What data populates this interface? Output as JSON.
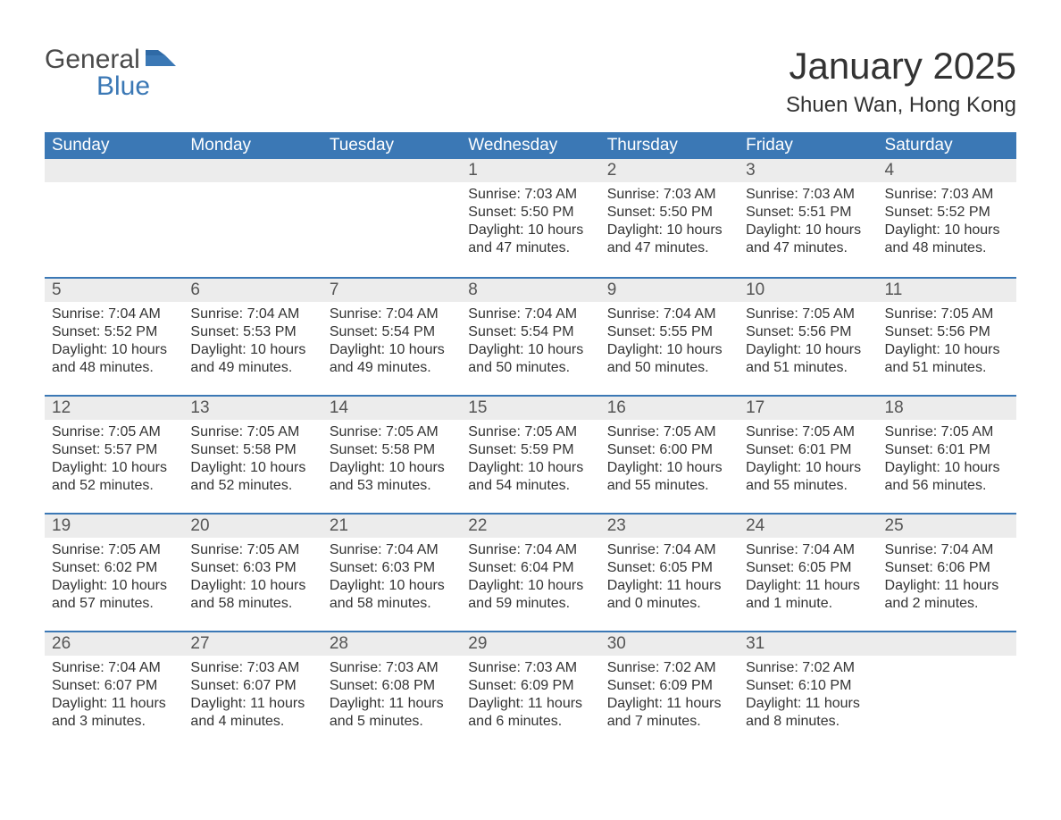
{
  "logo": {
    "text1": "General",
    "text2": "Blue",
    "flag_color": "#3b78b5"
  },
  "title": "January 2025",
  "location": "Shuen Wan, Hong Kong",
  "colors": {
    "header_bg": "#3b78b5",
    "header_text": "#ffffff",
    "daynum_bg": "#ececec",
    "row_border": "#3b78b5",
    "body_bg": "#ffffff",
    "text": "#333333"
  },
  "typography": {
    "title_fontsize": 42,
    "location_fontsize": 24,
    "header_fontsize": 19,
    "daynum_fontsize": 19,
    "body_fontsize": 16
  },
  "weekdays": [
    "Sunday",
    "Monday",
    "Tuesday",
    "Wednesday",
    "Thursday",
    "Friday",
    "Saturday"
  ],
  "weeks": [
    [
      null,
      null,
      null,
      {
        "n": "1",
        "sr": "Sunrise: 7:03 AM",
        "ss": "Sunset: 5:50 PM",
        "dl": "Daylight: 10 hours and 47 minutes."
      },
      {
        "n": "2",
        "sr": "Sunrise: 7:03 AM",
        "ss": "Sunset: 5:50 PM",
        "dl": "Daylight: 10 hours and 47 minutes."
      },
      {
        "n": "3",
        "sr": "Sunrise: 7:03 AM",
        "ss": "Sunset: 5:51 PM",
        "dl": "Daylight: 10 hours and 47 minutes."
      },
      {
        "n": "4",
        "sr": "Sunrise: 7:03 AM",
        "ss": "Sunset: 5:52 PM",
        "dl": "Daylight: 10 hours and 48 minutes."
      }
    ],
    [
      {
        "n": "5",
        "sr": "Sunrise: 7:04 AM",
        "ss": "Sunset: 5:52 PM",
        "dl": "Daylight: 10 hours and 48 minutes."
      },
      {
        "n": "6",
        "sr": "Sunrise: 7:04 AM",
        "ss": "Sunset: 5:53 PM",
        "dl": "Daylight: 10 hours and 49 minutes."
      },
      {
        "n": "7",
        "sr": "Sunrise: 7:04 AM",
        "ss": "Sunset: 5:54 PM",
        "dl": "Daylight: 10 hours and 49 minutes."
      },
      {
        "n": "8",
        "sr": "Sunrise: 7:04 AM",
        "ss": "Sunset: 5:54 PM",
        "dl": "Daylight: 10 hours and 50 minutes."
      },
      {
        "n": "9",
        "sr": "Sunrise: 7:04 AM",
        "ss": "Sunset: 5:55 PM",
        "dl": "Daylight: 10 hours and 50 minutes."
      },
      {
        "n": "10",
        "sr": "Sunrise: 7:05 AM",
        "ss": "Sunset: 5:56 PM",
        "dl": "Daylight: 10 hours and 51 minutes."
      },
      {
        "n": "11",
        "sr": "Sunrise: 7:05 AM",
        "ss": "Sunset: 5:56 PM",
        "dl": "Daylight: 10 hours and 51 minutes."
      }
    ],
    [
      {
        "n": "12",
        "sr": "Sunrise: 7:05 AM",
        "ss": "Sunset: 5:57 PM",
        "dl": "Daylight: 10 hours and 52 minutes."
      },
      {
        "n": "13",
        "sr": "Sunrise: 7:05 AM",
        "ss": "Sunset: 5:58 PM",
        "dl": "Daylight: 10 hours and 52 minutes."
      },
      {
        "n": "14",
        "sr": "Sunrise: 7:05 AM",
        "ss": "Sunset: 5:58 PM",
        "dl": "Daylight: 10 hours and 53 minutes."
      },
      {
        "n": "15",
        "sr": "Sunrise: 7:05 AM",
        "ss": "Sunset: 5:59 PM",
        "dl": "Daylight: 10 hours and 54 minutes."
      },
      {
        "n": "16",
        "sr": "Sunrise: 7:05 AM",
        "ss": "Sunset: 6:00 PM",
        "dl": "Daylight: 10 hours and 55 minutes."
      },
      {
        "n": "17",
        "sr": "Sunrise: 7:05 AM",
        "ss": "Sunset: 6:01 PM",
        "dl": "Daylight: 10 hours and 55 minutes."
      },
      {
        "n": "18",
        "sr": "Sunrise: 7:05 AM",
        "ss": "Sunset: 6:01 PM",
        "dl": "Daylight: 10 hours and 56 minutes."
      }
    ],
    [
      {
        "n": "19",
        "sr": "Sunrise: 7:05 AM",
        "ss": "Sunset: 6:02 PM",
        "dl": "Daylight: 10 hours and 57 minutes."
      },
      {
        "n": "20",
        "sr": "Sunrise: 7:05 AM",
        "ss": "Sunset: 6:03 PM",
        "dl": "Daylight: 10 hours and 58 minutes."
      },
      {
        "n": "21",
        "sr": "Sunrise: 7:04 AM",
        "ss": "Sunset: 6:03 PM",
        "dl": "Daylight: 10 hours and 58 minutes."
      },
      {
        "n": "22",
        "sr": "Sunrise: 7:04 AM",
        "ss": "Sunset: 6:04 PM",
        "dl": "Daylight: 10 hours and 59 minutes."
      },
      {
        "n": "23",
        "sr": "Sunrise: 7:04 AM",
        "ss": "Sunset: 6:05 PM",
        "dl": "Daylight: 11 hours and 0 minutes."
      },
      {
        "n": "24",
        "sr": "Sunrise: 7:04 AM",
        "ss": "Sunset: 6:05 PM",
        "dl": "Daylight: 11 hours and 1 minute."
      },
      {
        "n": "25",
        "sr": "Sunrise: 7:04 AM",
        "ss": "Sunset: 6:06 PM",
        "dl": "Daylight: 11 hours and 2 minutes."
      }
    ],
    [
      {
        "n": "26",
        "sr": "Sunrise: 7:04 AM",
        "ss": "Sunset: 6:07 PM",
        "dl": "Daylight: 11 hours and 3 minutes."
      },
      {
        "n": "27",
        "sr": "Sunrise: 7:03 AM",
        "ss": "Sunset: 6:07 PM",
        "dl": "Daylight: 11 hours and 4 minutes."
      },
      {
        "n": "28",
        "sr": "Sunrise: 7:03 AM",
        "ss": "Sunset: 6:08 PM",
        "dl": "Daylight: 11 hours and 5 minutes."
      },
      {
        "n": "29",
        "sr": "Sunrise: 7:03 AM",
        "ss": "Sunset: 6:09 PM",
        "dl": "Daylight: 11 hours and 6 minutes."
      },
      {
        "n": "30",
        "sr": "Sunrise: 7:02 AM",
        "ss": "Sunset: 6:09 PM",
        "dl": "Daylight: 11 hours and 7 minutes."
      },
      {
        "n": "31",
        "sr": "Sunrise: 7:02 AM",
        "ss": "Sunset: 6:10 PM",
        "dl": "Daylight: 11 hours and 8 minutes."
      },
      null
    ]
  ]
}
